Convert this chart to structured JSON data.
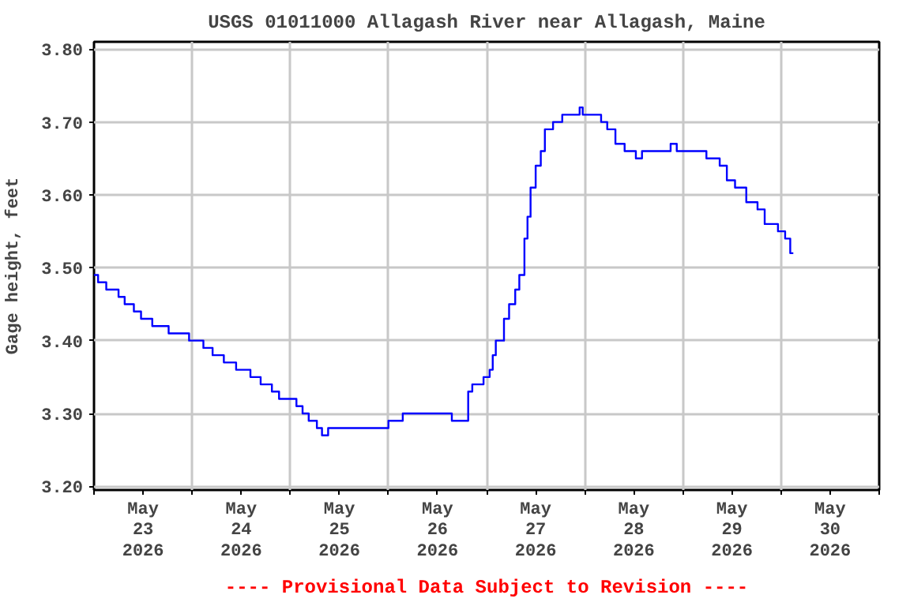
{
  "chart_data": {
    "type": "step",
    "title": "USGS 01011000 Allagash River near Allagash, Maine",
    "ylabel": "Gage height, feet",
    "annotations": [
      "---- Provisional Data Subject to Revision ----"
    ],
    "x": [
      "2026-05-23T00:00",
      "2026-05-23T01:00",
      "2026-05-23T03:00",
      "2026-05-23T06:00",
      "2026-05-23T07:30",
      "2026-05-23T09:45",
      "2026-05-23T11:30",
      "2026-05-23T14:15",
      "2026-05-23T18:15",
      "2026-05-23T23:15",
      "2026-05-24T02:45",
      "2026-05-24T05:00",
      "2026-05-24T07:45",
      "2026-05-24T10:45",
      "2026-05-24T14:15",
      "2026-05-24T16:45",
      "2026-05-24T19:30",
      "2026-05-24T21:15",
      "2026-05-25T00:00",
      "2026-05-25T01:30",
      "2026-05-25T03:00",
      "2026-05-25T04:30",
      "2026-05-25T06:30",
      "2026-05-25T07:45",
      "2026-05-25T09:15",
      "2026-05-26T00:00",
      "2026-05-26T03:30",
      "2026-05-26T15:30",
      "2026-05-26T19:30",
      "2026-05-26T20:30",
      "2026-05-26T23:15",
      "2026-05-27T00:45",
      "2026-05-27T01:30",
      "2026-05-27T02:15",
      "2026-05-27T04:15",
      "2026-05-27T05:30",
      "2026-05-27T07:00",
      "2026-05-27T08:00",
      "2026-05-27T09:15",
      "2026-05-27T10:00",
      "2026-05-27T10:45",
      "2026-05-27T12:00",
      "2026-05-27T13:15",
      "2026-05-27T14:15",
      "2026-05-27T16:15",
      "2026-05-27T18:30",
      "2026-05-27T22:45",
      "2026-05-27T23:30",
      "2026-05-28T04:00",
      "2026-05-28T05:30",
      "2026-05-28T07:30",
      "2026-05-28T09:45",
      "2026-05-28T12:30",
      "2026-05-28T14:00",
      "2026-05-28T21:00",
      "2026-05-28T22:30",
      "2026-05-29T05:45",
      "2026-05-29T09:00",
      "2026-05-29T10:45",
      "2026-05-29T12:45",
      "2026-05-29T15:30",
      "2026-05-29T18:15",
      "2026-05-29T20:00",
      "2026-05-29T23:15",
      "2026-05-30T01:00",
      "2026-05-30T02:15",
      "2026-05-30T03:00"
    ],
    "series": [
      {
        "color": "#0000ff",
        "values": [
          3.49,
          3.48,
          3.47,
          3.46,
          3.45,
          3.44,
          3.43,
          3.42,
          3.41,
          3.4,
          3.39,
          3.38,
          3.37,
          3.36,
          3.35,
          3.34,
          3.33,
          3.32,
          3.32,
          3.31,
          3.3,
          3.29,
          3.28,
          3.27,
          3.28,
          3.29,
          3.3,
          3.29,
          3.33,
          3.34,
          3.35,
          3.36,
          3.38,
          3.4,
          3.43,
          3.45,
          3.47,
          3.49,
          3.54,
          3.57,
          3.61,
          3.64,
          3.66,
          3.69,
          3.7,
          3.71,
          3.72,
          3.71,
          3.7,
          3.69,
          3.67,
          3.66,
          3.65,
          3.66,
          3.67,
          3.66,
          3.65,
          3.64,
          3.62,
          3.61,
          3.59,
          3.58,
          3.56,
          3.55,
          3.54,
          3.52,
          3.52
        ]
      }
    ],
    "xlim": [
      "2026-05-23",
      "2026-05-31"
    ],
    "xticks": [
      {
        "value": "2026-05-23",
        "label": null
      },
      {
        "value": "2026-05-23T12:00",
        "label": "May\n23\n2026"
      },
      {
        "value": "2026-05-24",
        "label": null
      },
      {
        "value": "2026-05-24T12:00",
        "label": "May\n24\n2026"
      },
      {
        "value": "2026-05-25",
        "label": null
      },
      {
        "value": "2026-05-25T12:00",
        "label": "May\n25\n2026"
      },
      {
        "value": "2026-05-26",
        "label": null
      },
      {
        "value": "2026-05-26T12:00",
        "label": "May\n26\n2026"
      },
      {
        "value": "2026-05-27",
        "label": null
      },
      {
        "value": "2026-05-27T12:00",
        "label": "May\n27\n2026"
      },
      {
        "value": "2026-05-28",
        "label": null
      },
      {
        "value": "2026-05-28T12:00",
        "label": "May\n28\n2026"
      },
      {
        "value": "2026-05-29",
        "label": null
      },
      {
        "value": "2026-05-29T12:00",
        "label": "May\n29\n2026"
      },
      {
        "value": "2026-05-30",
        "label": null
      },
      {
        "value": "2026-05-30T12:00",
        "label": "May\n30\n2026"
      },
      {
        "value": "2026-05-31",
        "label": null
      }
    ],
    "ylim": [
      3.195,
      3.81
    ],
    "yticks": [
      {
        "value": 3.2,
        "label": "3.20"
      },
      {
        "value": 3.3,
        "label": "3.30"
      },
      {
        "value": 3.4,
        "label": "3.40"
      },
      {
        "value": 3.5,
        "label": "3.50"
      },
      {
        "value": 3.6,
        "label": "3.60"
      },
      {
        "value": 3.7,
        "label": "3.70"
      },
      {
        "value": 3.8,
        "label": "3.80"
      }
    ],
    "grid": true,
    "line_style": "solid"
  }
}
